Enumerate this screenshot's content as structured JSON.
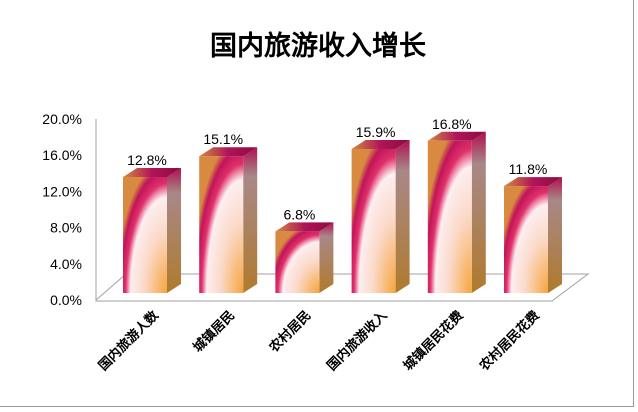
{
  "chart_data": {
    "type": "bar",
    "style": "3d-column",
    "title": "国内旅游收入增长",
    "categories": [
      "国内旅游人数",
      "城镇居民",
      "农村居民",
      "国内旅游收入",
      "城镇居民花费",
      "农村居民花费"
    ],
    "values": [
      12.8,
      15.1,
      6.8,
      15.9,
      16.8,
      11.8
    ],
    "data_labels": [
      "12.8%",
      "15.1%",
      "6.8%",
      "15.9%",
      "16.8%",
      "11.8%"
    ],
    "ylim": [
      0,
      20
    ],
    "y_ticks": [
      "0.0%",
      "4.0%",
      "8.0%",
      "12.0%",
      "16.0%",
      "20.0%"
    ],
    "xlabel": "",
    "ylabel": "",
    "grid": false,
    "legend": "none",
    "colors": {
      "edge": "#c8145a",
      "center": "#fde8ea",
      "base": "#f7a940",
      "side": "#a47a3a"
    }
  }
}
